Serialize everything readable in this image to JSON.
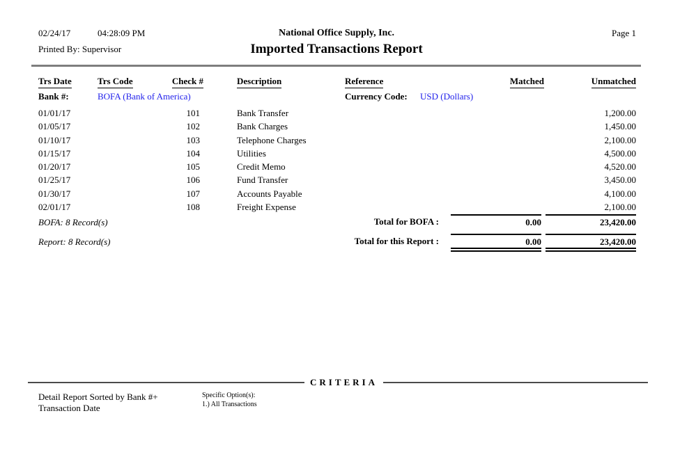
{
  "header": {
    "date": "02/24/17",
    "time": "04:28:09 PM",
    "printed_by": "Printed By: Supervisor",
    "company": "National Office Supply, Inc.",
    "title": "Imported Transactions Report",
    "page": "Page 1"
  },
  "table": {
    "columns": [
      "Trs Date",
      "Trs Code",
      "Check #",
      "Description",
      "Reference",
      "Matched",
      "Unmatched"
    ],
    "bank_label": "Bank #:",
    "bank_value": "BOFA (Bank of America)",
    "currency_label": "Currency Code:",
    "currency_value": "USD (Dollars)",
    "rows": [
      {
        "trs_date": "01/01/17",
        "trs_code": "",
        "check_number": "101",
        "description": "Bank Transfer",
        "reference": "",
        "matched": "",
        "unmatched": "1,200.00"
      },
      {
        "trs_date": "01/05/17",
        "trs_code": "",
        "check_number": "102",
        "description": "Bank Charges",
        "reference": "",
        "matched": "",
        "unmatched": "1,450.00"
      },
      {
        "trs_date": "01/10/17",
        "trs_code": "",
        "check_number": "103",
        "description": "Telephone Charges",
        "reference": "",
        "matched": "",
        "unmatched": "2,100.00"
      },
      {
        "trs_date": "01/15/17",
        "trs_code": "",
        "check_number": "104",
        "description": "Utilities",
        "reference": "",
        "matched": "",
        "unmatched": "4,500.00"
      },
      {
        "trs_date": "01/20/17",
        "trs_code": "",
        "check_number": "105",
        "description": "Credit Memo",
        "reference": "",
        "matched": "",
        "unmatched": "4,520.00"
      },
      {
        "trs_date": "01/25/17",
        "trs_code": "",
        "check_number": "106",
        "description": "Fund Transfer",
        "reference": "",
        "matched": "",
        "unmatched": "3,450.00"
      },
      {
        "trs_date": "01/30/17",
        "trs_code": "",
        "check_number": "107",
        "description": "Accounts Payable",
        "reference": "",
        "matched": "",
        "unmatched": "4,100.00"
      },
      {
        "trs_date": "02/01/17",
        "trs_code": "",
        "check_number": "108",
        "description": "Freight Expense",
        "reference": "",
        "matched": "",
        "unmatched": "2,100.00"
      }
    ]
  },
  "totals": {
    "bank_records": "BOFA: 8 Record(s)",
    "bank_total_label": "Total for BOFA :",
    "bank_matched": "0.00",
    "bank_unmatched": "23,420.00",
    "report_records": "Report: 8 Record(s)",
    "report_total_label": "Total for this Report :",
    "report_matched": "0.00",
    "report_unmatched": "23,420.00"
  },
  "criteria": {
    "heading": "CRITERIA",
    "sort_line1": "Detail Report Sorted by Bank #+",
    "sort_line2": "Transaction Date",
    "options_label": "Specific Option(s):",
    "option1": "1.) All Transactions"
  },
  "colors": {
    "link_blue": "#2121eb",
    "rule_gray": "#7e7e7e"
  }
}
